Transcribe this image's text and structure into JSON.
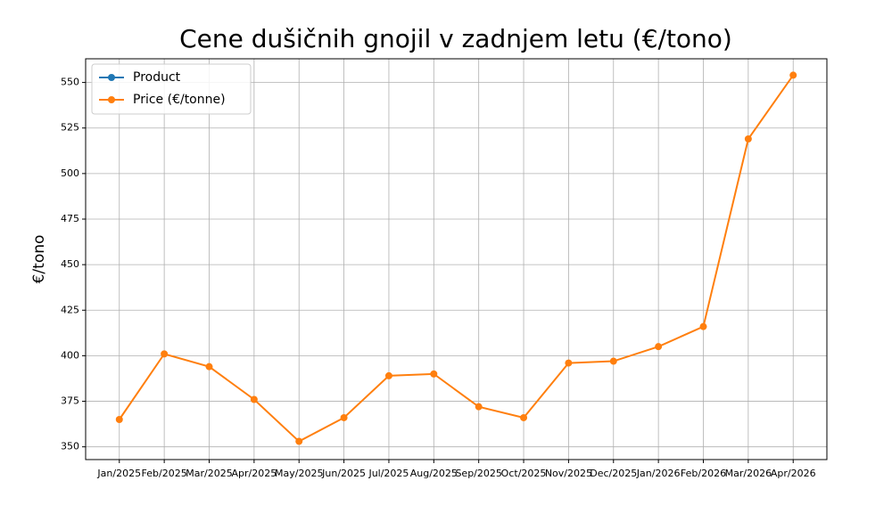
{
  "chart_data": {
    "type": "line",
    "title": "Cene dušičnih gnojil v zadnjem letu (€/tono)",
    "ylabel": "€/tono",
    "categories": [
      "Jan/2025",
      "Feb/2025",
      "Mar/2025",
      "Apr/2025",
      "May/2025",
      "Jun/2025",
      "Jul/2025",
      "Aug/2025",
      "Sep/2025",
      "Oct/2025",
      "Nov/2025",
      "Dec/2025",
      "Jan/2026",
      "Feb/2026",
      "Mar/2026",
      "Apr/2026"
    ],
    "series": [
      {
        "name": "Product",
        "color": "#1f77b4",
        "values": [
          null,
          null,
          null,
          null,
          null,
          null,
          null,
          null,
          null,
          null,
          null,
          null,
          null,
          null,
          null,
          null
        ]
      },
      {
        "name": "Price (€/tonne)",
        "color": "#ff7f0e",
        "values": [
          365,
          401,
          394,
          376,
          353,
          366,
          389,
          390,
          372,
          366,
          396,
          397,
          405,
          416,
          519,
          554
        ]
      }
    ],
    "ylim": [
      343,
      563
    ],
    "yticks": [
      350,
      375,
      400,
      425,
      450,
      475,
      500,
      525,
      550
    ],
    "grid": true,
    "legend": "upper left"
  }
}
